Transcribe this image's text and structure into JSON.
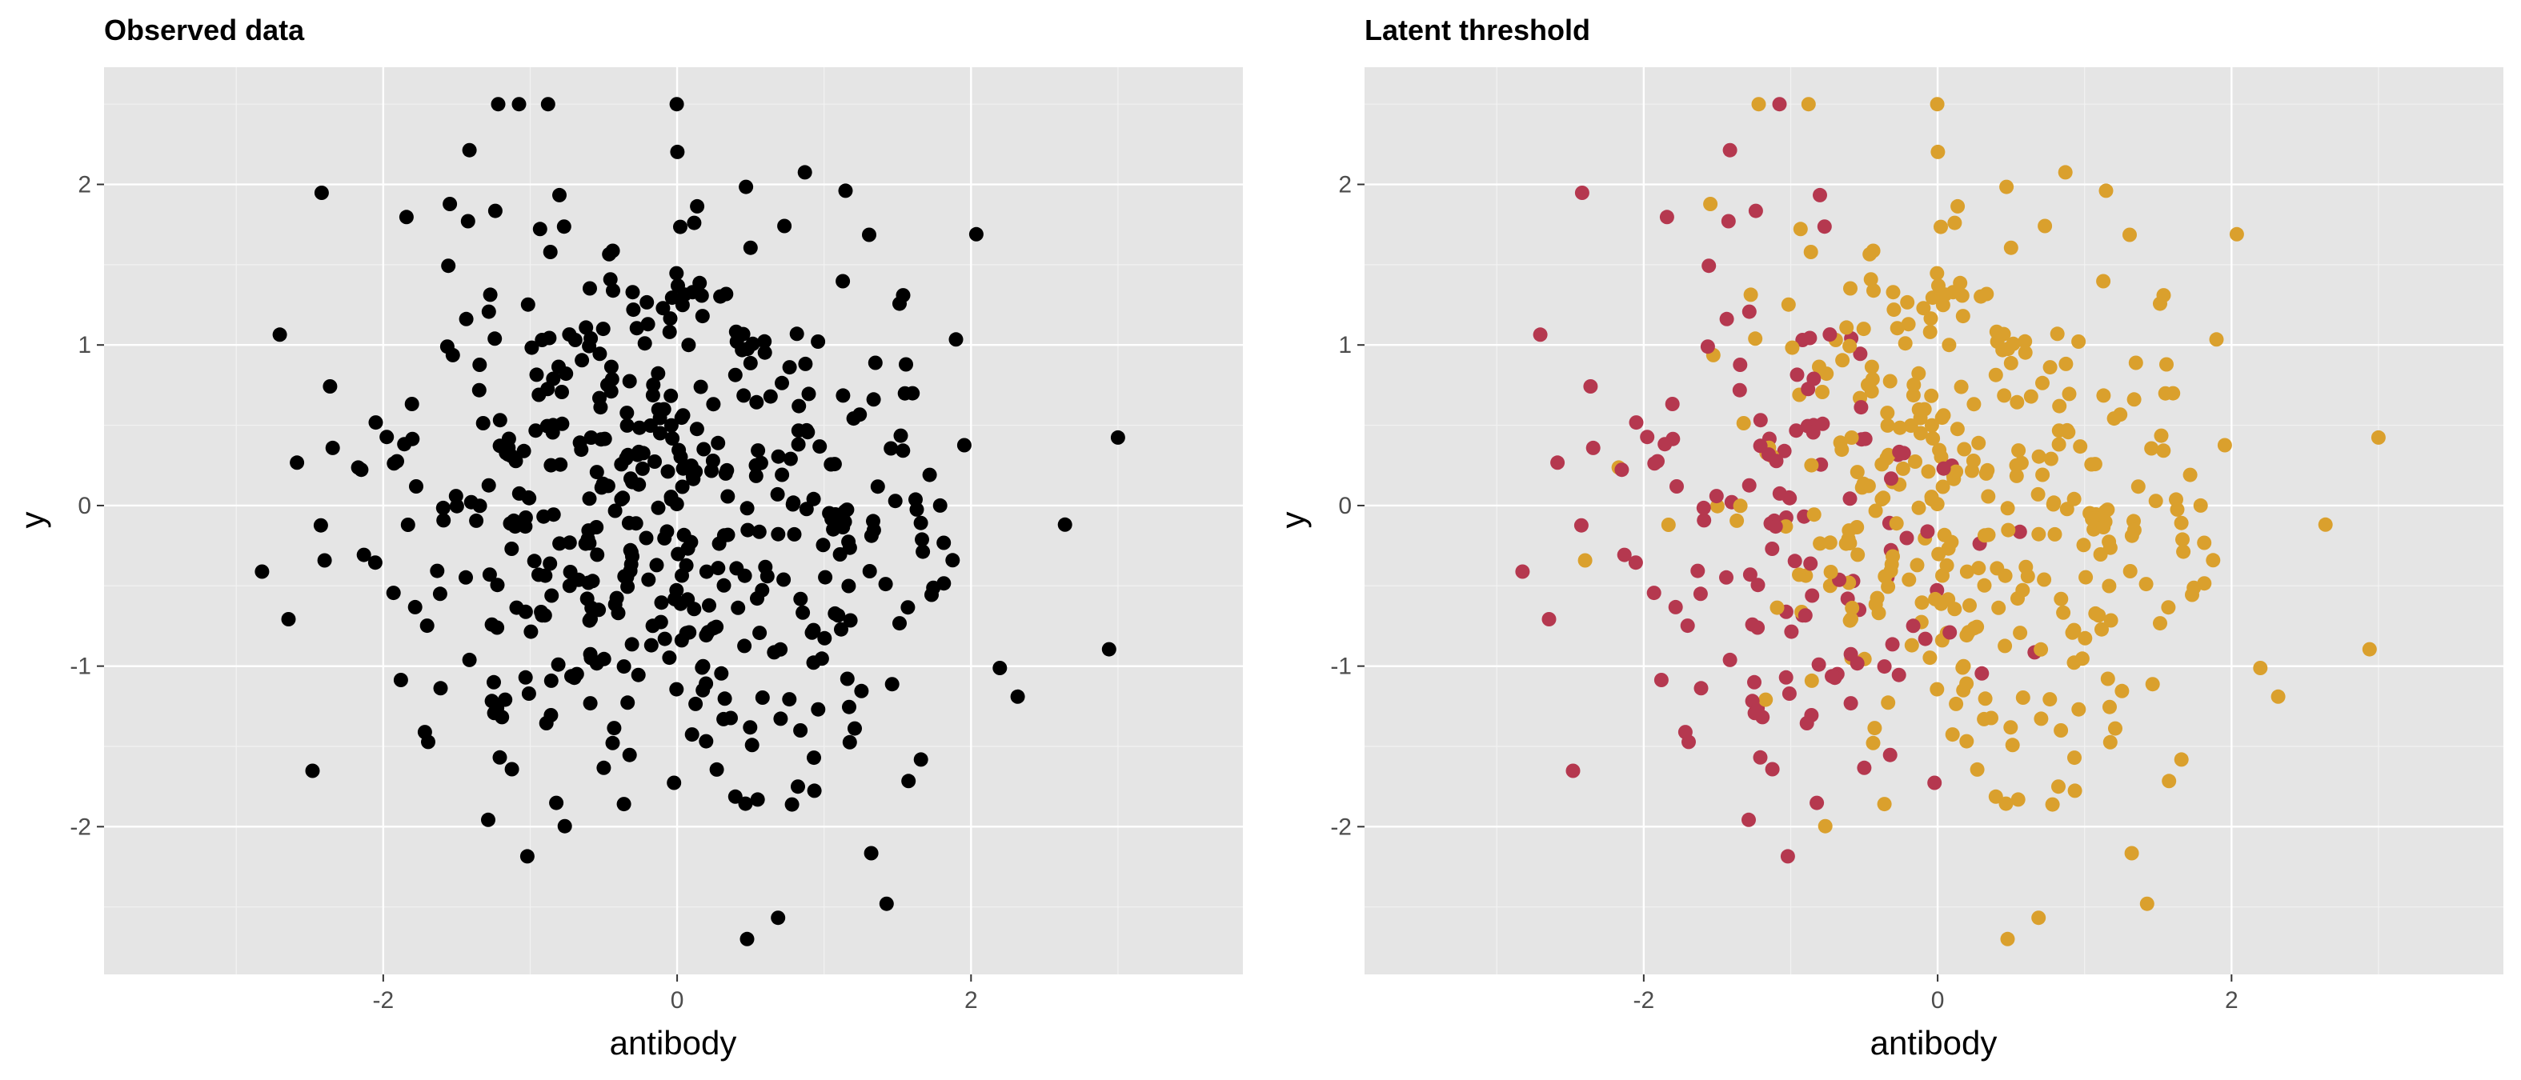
{
  "chart_data": [
    {
      "type": "scatter",
      "title": "Observed data",
      "xlabel": "antibody",
      "ylabel": "y",
      "xlim": [
        -3.9,
        3.85
      ],
      "ylim": [
        -2.92,
        2.73
      ],
      "xticks": [
        -2,
        0,
        2
      ],
      "yticks": [
        -2,
        -1,
        0,
        1,
        2
      ],
      "grid": true,
      "background": "#e5e5e5",
      "legend": "none",
      "point_color": "#000000",
      "point_count": 500
    },
    {
      "type": "scatter",
      "title": "Latent threshold",
      "xlabel": "antibody",
      "ylabel": "y",
      "xlim": [
        -3.9,
        3.85
      ],
      "ylim": [
        -2.92,
        2.73
      ],
      "xticks": [
        -2,
        0,
        2
      ],
      "yticks": [
        -2,
        -1,
        0,
        1,
        2
      ],
      "grid": true,
      "background": "#e5e5e5",
      "legend": "none",
      "series": [
        {
          "color": "#b5384f"
        },
        {
          "color": "#daa02d"
        }
      ],
      "point_count": 500
    }
  ]
}
